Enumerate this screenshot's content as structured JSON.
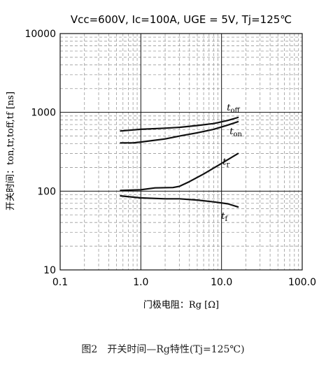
{
  "conditions": "Vcc=600V, Ic=100A,  UGE = 5V, Tj=125℃",
  "caption": "图2　开关时间—Rg特性(Tj=125℃)",
  "chart_data": {
    "type": "line",
    "xscale": "log",
    "yscale": "log",
    "xlim": [
      0.1,
      100
    ],
    "ylim": [
      10,
      10000
    ],
    "grid": true,
    "xlabel": "门极电阻：Rg [Ω]",
    "ylabel": "开关时间：ton,tr,toff,tf [ns]",
    "xticks": [
      "0.1",
      "1.0",
      "10.0",
      "100.0"
    ],
    "yticks": [
      "10",
      "100",
      "1000",
      "10000"
    ],
    "series": [
      {
        "name": "toff",
        "label_main": "t",
        "label_sub": "off",
        "x": [
          0.56,
          1.0,
          2.0,
          3.0,
          5.0,
          8.0,
          12.0,
          16.0
        ],
        "y": [
          580,
          610,
          630,
          645,
          680,
          720,
          790,
          860
        ]
      },
      {
        "name": "ton",
        "label_main": "t",
        "label_sub": "on",
        "x": [
          0.56,
          0.8,
          1.0,
          2.0,
          3.0,
          5.0,
          8.0,
          12.0,
          16.0
        ],
        "y": [
          410,
          410,
          420,
          460,
          500,
          550,
          610,
          690,
          760
        ]
      },
      {
        "name": "tr",
        "label_main": "t",
        "label_sub": "r",
        "x": [
          0.56,
          1.0,
          1.5,
          2.5,
          3.0,
          4.0,
          6.0,
          10.0,
          16.0
        ],
        "y": [
          102,
          104,
          110,
          111,
          115,
          132,
          165,
          225,
          300
        ]
      },
      {
        "name": "tf",
        "label_main": "t",
        "label_sub": "f",
        "x": [
          0.56,
          1.0,
          2.0,
          3.0,
          5.0,
          8.0,
          12.0,
          16.0
        ],
        "y": [
          87,
          82,
          80,
          80,
          77,
          73,
          69,
          63
        ]
      }
    ]
  }
}
